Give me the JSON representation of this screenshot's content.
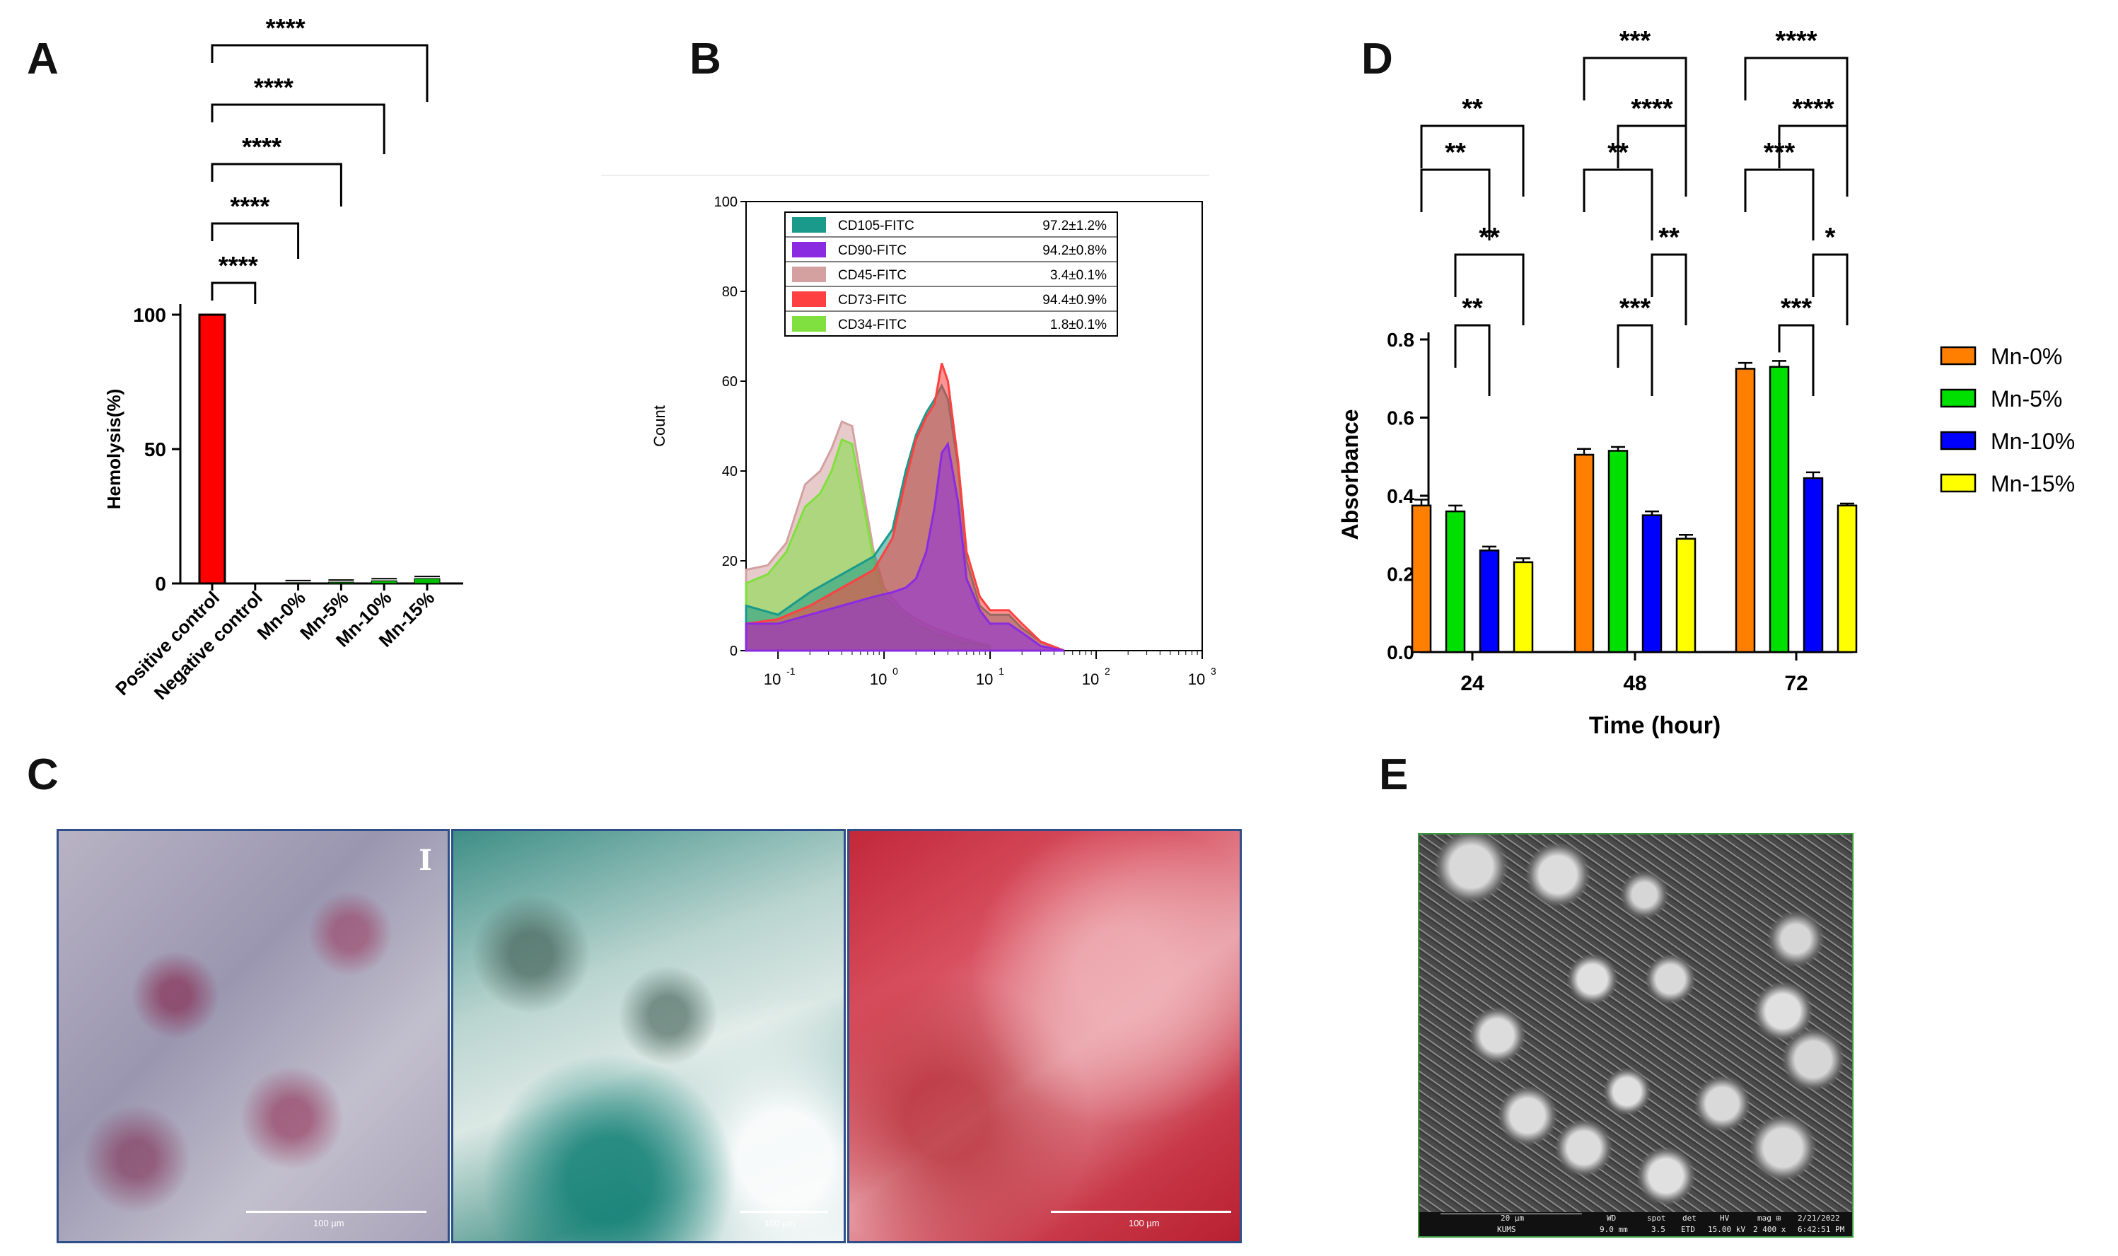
{
  "panels": {
    "a": "A",
    "b": "B",
    "c": "C",
    "d": "D",
    "e": "E"
  },
  "colors": {
    "positive": "#ff0000",
    "mn0": "#ff7f00",
    "mn5": "#00e000",
    "mn10": "#0000ff",
    "mn15": "#ffff00",
    "cd105": "#1a9a8a",
    "cd90": "#8a2be2",
    "cd45": "#d4a0a0",
    "cd73": "#ff4040",
    "cd34": "#80e040"
  },
  "chart_data": [
    {
      "id": "A",
      "type": "bar",
      "ylabel": "Hemolysis(%)",
      "xlabel": "",
      "ylim": [
        0,
        100
      ],
      "yticks": [
        "0",
        "50",
        "100"
      ],
      "categories": [
        "Positive control",
        "Negative control",
        "Mn-0%",
        "Mn-5%",
        "Mn-10%",
        "Mn-15%"
      ],
      "values": [
        100,
        0,
        0.3,
        0.5,
        1.0,
        1.8
      ],
      "bar_colors": [
        "#ff0000",
        "#ff0000",
        "#00c000",
        "#00c000",
        "#00c000",
        "#00c000"
      ],
      "significance": [
        {
          "from": 0,
          "to": 1,
          "label": "****"
        },
        {
          "from": 0,
          "to": 2,
          "label": "****"
        },
        {
          "from": 0,
          "to": 3,
          "label": "****"
        },
        {
          "from": 0,
          "to": 4,
          "label": "****"
        },
        {
          "from": 0,
          "to": 5,
          "label": "****"
        }
      ]
    },
    {
      "id": "B",
      "type": "line",
      "title": "",
      "xlabel": "",
      "ylabel": "Count",
      "xscale": "log",
      "xlim": [
        0.05,
        1000
      ],
      "ylim": [
        0,
        100
      ],
      "yticks": [
        "0",
        "20",
        "40",
        "60",
        "80",
        "100"
      ],
      "xticks": [
        {
          "base": "10",
          "exp": "-1",
          "value": 0.1
        },
        {
          "base": "10",
          "exp": "0",
          "value": 1
        },
        {
          "base": "10",
          "exp": "1",
          "value": 10
        },
        {
          "base": "10",
          "exp": "2",
          "value": 100
        },
        {
          "base": "10",
          "exp": "3",
          "value": 1000
        }
      ],
      "legend": [
        {
          "name": "CD105-FITC",
          "value": "97.2±1.2%",
          "color": "#1a9a8a"
        },
        {
          "name": "CD90-FITC",
          "value": "94.2±0.8%",
          "color": "#8a2be2"
        },
        {
          "name": "CD45-FITC",
          "value": "3.4±0.1%",
          "color": "#d4a0a0"
        },
        {
          "name": "CD73-FITC",
          "value": "94.4±0.9%",
          "color": "#ff4040"
        },
        {
          "name": "CD34-FITC",
          "value": "1.8±0.1%",
          "color": "#80e040"
        }
      ],
      "series": [
        {
          "name": "CD45-FITC",
          "color": "#d4a0a0",
          "x": [
            0.05,
            0.08,
            0.12,
            0.18,
            0.25,
            0.32,
            0.4,
            0.5,
            0.6,
            0.8,
            1.0,
            1.5,
            2,
            3,
            5,
            10
          ],
          "y": [
            18,
            19,
            24,
            37,
            40,
            45,
            51,
            50,
            39,
            22,
            14,
            9,
            7,
            5,
            3,
            1
          ]
        },
        {
          "name": "CD34-FITC",
          "color": "#80e040",
          "x": [
            0.05,
            0.08,
            0.12,
            0.18,
            0.25,
            0.32,
            0.4,
            0.5,
            0.6,
            0.8,
            1.0,
            1.5,
            2,
            3,
            5,
            10
          ],
          "y": [
            15,
            17,
            22,
            32,
            35,
            40,
            47,
            46,
            36,
            20,
            12,
            8,
            6,
            4,
            2,
            1
          ]
        },
        {
          "name": "CD105-FITC",
          "color": "#1a9a8a",
          "x": [
            0.05,
            0.1,
            0.2,
            0.4,
            0.8,
            1.2,
            1.6,
            2,
            2.5,
            3,
            3.5,
            4,
            5,
            6,
            8,
            10,
            15,
            20,
            30,
            50
          ],
          "y": [
            10,
            8,
            13,
            17,
            21,
            27,
            40,
            48,
            53,
            56,
            59,
            56,
            41,
            20,
            10,
            8,
            8,
            5,
            2,
            0
          ]
        },
        {
          "name": "CD73-FITC",
          "color": "#ff4040",
          "x": [
            0.05,
            0.1,
            0.2,
            0.4,
            0.8,
            1.2,
            1.6,
            2,
            2.5,
            3,
            3.5,
            4,
            5,
            6,
            8,
            10,
            15,
            20,
            30,
            50
          ],
          "y": [
            6,
            7,
            10,
            14,
            18,
            25,
            38,
            47,
            52,
            55,
            64,
            60,
            42,
            22,
            12,
            9,
            9,
            6,
            2,
            0
          ]
        },
        {
          "name": "CD90-FITC",
          "color": "#8a2be2",
          "x": [
            0.05,
            0.1,
            0.2,
            0.4,
            0.8,
            1.2,
            1.6,
            2,
            2.5,
            3,
            3.5,
            4,
            5,
            6,
            8,
            10,
            15,
            20,
            30,
            50
          ],
          "y": [
            6,
            6,
            8,
            10,
            12,
            13,
            14,
            16,
            22,
            32,
            44,
            46,
            33,
            16,
            9,
            6,
            6,
            4,
            1,
            0
          ]
        }
      ]
    },
    {
      "id": "D",
      "type": "bar",
      "xlabel": "Time (hour)",
      "ylabel": "Absorbance",
      "ylim": [
        0,
        0.8
      ],
      "yticks": [
        "0.0",
        "0.2",
        "0.4",
        "0.6",
        "0.8"
      ],
      "categories": [
        "24",
        "48",
        "72"
      ],
      "series": [
        {
          "name": "Mn-0%",
          "color": "#ff7f00",
          "values": [
            0.375,
            0.505,
            0.725
          ],
          "errors": [
            0.015,
            0.015,
            0.015
          ]
        },
        {
          "name": "Mn-5%",
          "color": "#00e000",
          "values": [
            0.36,
            0.515,
            0.73
          ],
          "errors": [
            0.015,
            0.01,
            0.015
          ]
        },
        {
          "name": "Mn-10%",
          "color": "#0000ff",
          "values": [
            0.26,
            0.35,
            0.445
          ],
          "errors": [
            0.01,
            0.01,
            0.015
          ]
        },
        {
          "name": "Mn-15%",
          "color": "#ffff00",
          "values": [
            0.23,
            0.29,
            0.375
          ],
          "errors": [
            0.01,
            0.01,
            0.005
          ]
        }
      ],
      "legend_position": "right",
      "significance": [
        {
          "group": 0,
          "from": 0,
          "to": 3,
          "label": "**"
        },
        {
          "group": 0,
          "from": 0,
          "to": 2,
          "label": "**"
        },
        {
          "group": 0,
          "from": 1,
          "to": 3,
          "label": "**"
        },
        {
          "group": 0,
          "from": 1,
          "to": 2,
          "label": "**"
        },
        {
          "group": 1,
          "from": 0,
          "to": 3,
          "label": "***"
        },
        {
          "group": 1,
          "from": 1,
          "to": 3,
          "label": "****"
        },
        {
          "group": 1,
          "from": 0,
          "to": 2,
          "label": "**"
        },
        {
          "group": 1,
          "from": 2,
          "to": 3,
          "label": "**"
        },
        {
          "group": 1,
          "from": 1,
          "to": 2,
          "label": "***"
        },
        {
          "group": 2,
          "from": 0,
          "to": 3,
          "label": "****"
        },
        {
          "group": 2,
          "from": 1,
          "to": 3,
          "label": "****"
        },
        {
          "group": 2,
          "from": 0,
          "to": 2,
          "label": "***"
        },
        {
          "group": 2,
          "from": 2,
          "to": 3,
          "label": "*"
        },
        {
          "group": 2,
          "from": 1,
          "to": 2,
          "label": "***"
        }
      ]
    }
  ],
  "panel_c": {
    "marker": "I",
    "scale_labels": [
      "100 µm",
      "100 µm",
      "100 µm"
    ]
  },
  "panel_e": {
    "info_row1": [
      "20 µm",
      "WD",
      "spot",
      "det",
      "HV",
      "mag ⊞",
      "2/21/2022"
    ],
    "info_row2": [
      "KUMS",
      "9.0 mm",
      "3.5",
      "ETD",
      "15.00 kV",
      "2 400 x",
      "6:42:51 PM"
    ]
  }
}
